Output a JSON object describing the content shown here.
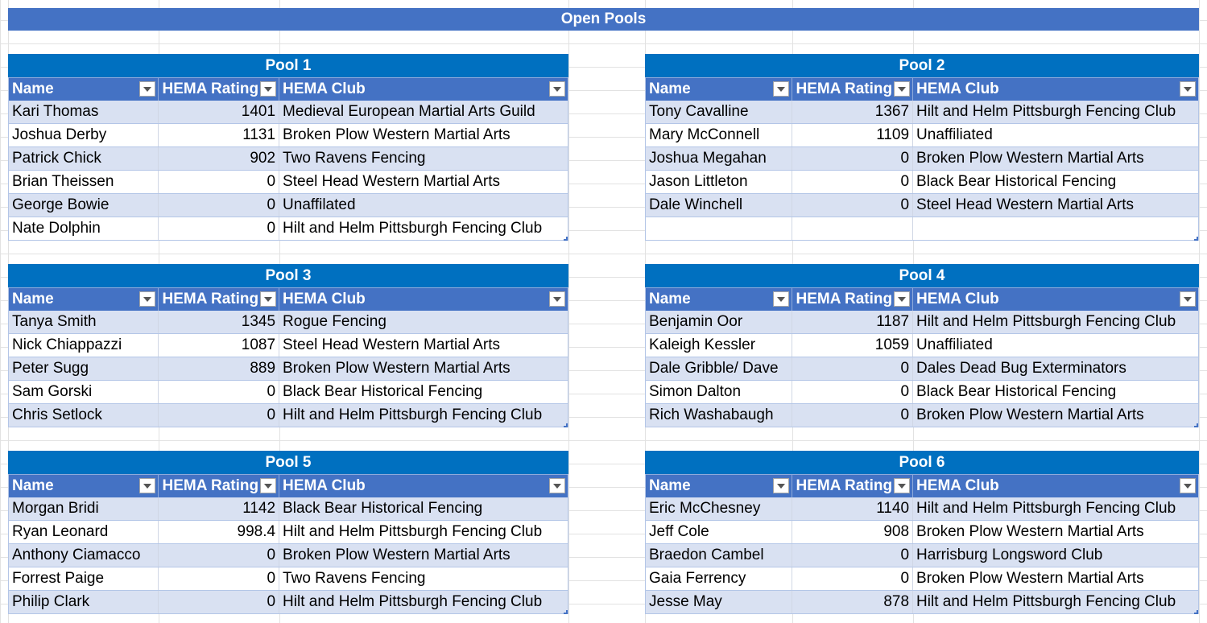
{
  "banner": "Open Pools",
  "headers": {
    "name": "Name",
    "rating": "HEMA Rating",
    "club": "HEMA Club"
  },
  "pools": [
    {
      "title": "Pool 1",
      "rows": [
        {
          "name": "Kari Thomas",
          "rating": "1401",
          "club": "Medieval European Martial Arts Guild"
        },
        {
          "name": "Joshua Derby",
          "rating": "1131",
          "club": "Broken Plow Western Martial Arts"
        },
        {
          "name": "Patrick Chick",
          "rating": "902",
          "club": "Two Ravens Fencing"
        },
        {
          "name": "Brian Theissen",
          "rating": "0",
          "club": "Steel Head Western Martial Arts"
        },
        {
          "name": "George Bowie",
          "rating": "0",
          "club": "Unaffilated"
        },
        {
          "name": "Nate Dolphin",
          "rating": "0",
          "club": "Hilt and Helm Pittsburgh Fencing Club"
        }
      ]
    },
    {
      "title": "Pool 2",
      "rows": [
        {
          "name": "Tony Cavalline",
          "rating": "1367",
          "club": "Hilt and Helm Pittsburgh Fencing Club"
        },
        {
          "name": "Mary McConnell",
          "rating": "1109",
          "club": "Unaffiliated"
        },
        {
          "name": "Joshua Megahan",
          "rating": "0",
          "club": "Broken Plow Western Martial Arts"
        },
        {
          "name": "Jason Littleton",
          "rating": "0",
          "club": "Black Bear Historical Fencing"
        },
        {
          "name": "Dale Winchell",
          "rating": "0",
          "club": "Steel Head Western Martial Arts"
        },
        {
          "name": "",
          "rating": "",
          "club": ""
        }
      ]
    },
    {
      "title": "Pool 3",
      "rows": [
        {
          "name": "Tanya Smith",
          "rating": "1345",
          "club": "Rogue Fencing"
        },
        {
          "name": "Nick Chiappazzi",
          "rating": "1087",
          "club": "Steel Head Western Martial Arts"
        },
        {
          "name": "Peter Sugg",
          "rating": "889",
          "club": "Broken Plow Western Martial Arts"
        },
        {
          "name": "Sam Gorski",
          "rating": "0",
          "club": "Black Bear Historical Fencing"
        },
        {
          "name": "Chris Setlock",
          "rating": "0",
          "club": "Hilt and Helm Pittsburgh Fencing Club"
        }
      ]
    },
    {
      "title": "Pool 4",
      "rows": [
        {
          "name": "Benjamin Oor",
          "rating": "1187",
          "club": "Hilt and Helm Pittsburgh Fencing Club"
        },
        {
          "name": "Kaleigh Kessler",
          "rating": "1059",
          "club": "Unaffiliated"
        },
        {
          "name": "Dale Gribble/ Dave",
          "rating": "0",
          "club": "Dales Dead Bug Exterminators"
        },
        {
          "name": "Simon Dalton",
          "rating": "0",
          "club": "Black Bear Historical Fencing"
        },
        {
          "name": "Rich Washabaugh",
          "rating": "0",
          "club": "Broken Plow Western Martial Arts"
        }
      ]
    },
    {
      "title": "Pool 5",
      "rows": [
        {
          "name": "Morgan Bridi",
          "rating": "1142",
          "club": "Black Bear Historical Fencing"
        },
        {
          "name": "Ryan Leonard",
          "rating": "998.4",
          "club": "Hilt and Helm Pittsburgh Fencing Club"
        },
        {
          "name": "Anthony Ciamacco",
          "rating": "0",
          "club": "Broken Plow Western Martial Arts"
        },
        {
          "name": "Forrest Paige",
          "rating": "0",
          "club": "Two Ravens Fencing"
        },
        {
          "name": "Philip Clark",
          "rating": "0",
          "club": "Hilt and Helm Pittsburgh Fencing Club"
        }
      ]
    },
    {
      "title": "Pool 6",
      "rows": [
        {
          "name": "Eric McChesney",
          "rating": "1140",
          "club": "Hilt and Helm Pittsburgh Fencing Club"
        },
        {
          "name": "Jeff Cole",
          "rating": "908",
          "club": "Broken Plow Western Martial Arts"
        },
        {
          "name": "Braedon Cambel",
          "rating": "0",
          "club": "Harrisburg Longsword Club"
        },
        {
          "name": "Gaia Ferrency",
          "rating": "0",
          "club": "Broken Plow Western Martial Arts"
        },
        {
          "name": "Jesse May",
          "rating": "878",
          "club": "Hilt and Helm Pittsburgh Fencing Club"
        }
      ]
    }
  ]
}
